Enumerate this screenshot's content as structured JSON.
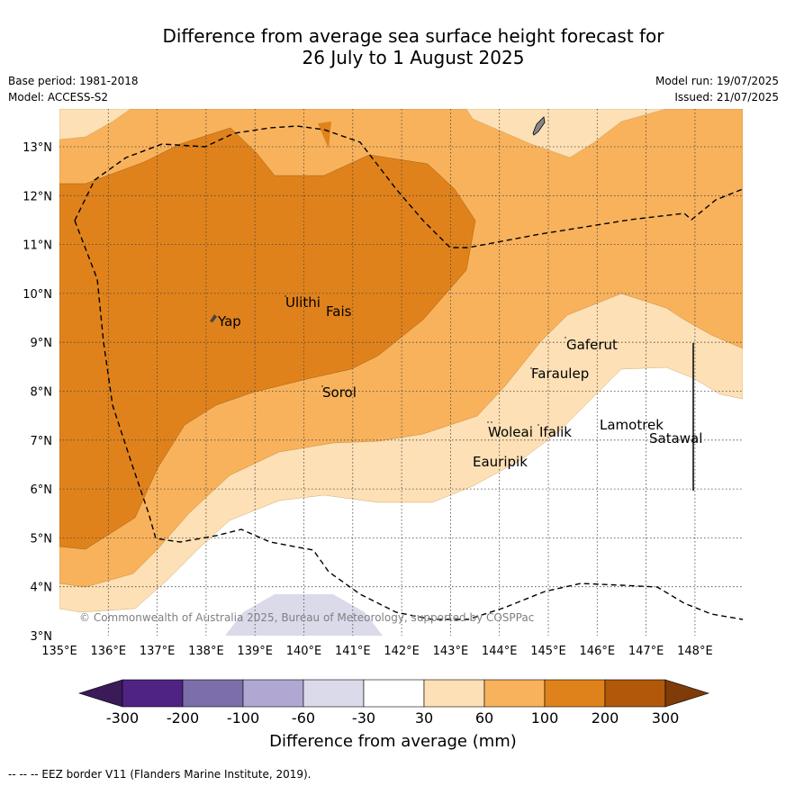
{
  "title": {
    "line1": "Difference from average sea surface height forecast for",
    "line2": "26 July to 1 August 2025"
  },
  "meta": {
    "base_period": "Base period: 1981-2018",
    "model": "Model: ACCESS-S2",
    "model_run": "Model run: 19/07/2025",
    "issued": "Issued: 21/07/2025"
  },
  "map": {
    "lon_ticks": [
      "135°E",
      "136°E",
      "137°E",
      "138°E",
      "139°E",
      "140°E",
      "141°E",
      "142°E",
      "143°E",
      "144°E",
      "145°E",
      "146°E",
      "147°E",
      "148°E"
    ],
    "lat_ticks": [
      "3°N",
      "4°N",
      "5°N",
      "6°N",
      "7°N",
      "8°N",
      "9°N",
      "10°N",
      "11°N",
      "12°N",
      "13°N"
    ],
    "places": [
      {
        "name": "Yap"
      },
      {
        "name": "Ulithi"
      },
      {
        "name": "Fais"
      },
      {
        "name": "Sorol"
      },
      {
        "name": "Gaferut"
      },
      {
        "name": "Faraulep"
      },
      {
        "name": "Woleai"
      },
      {
        "name": "Ifalik"
      },
      {
        "name": "Lamotrek"
      },
      {
        "name": "Satawal"
      },
      {
        "name": "Eauripik"
      }
    ],
    "copyright": "© Commonwealth of Australia 2025, Bureau of Meteorology, supported by COSPPac"
  },
  "colorbar": {
    "ticks": [
      "-300",
      "-200",
      "-100",
      "-60",
      "-30",
      "30",
      "60",
      "100",
      "200",
      "300"
    ],
    "colors": [
      "#3b1a5a",
      "#4f2383",
      "#7c6eab",
      "#b0a8d3",
      "#dadaeb",
      "#ffffff",
      "#fde0b5",
      "#f8b25c",
      "#e0821b",
      "#b1580b",
      "#7f3b08"
    ],
    "title": "Difference from average (mm)"
  },
  "eez_note": "--  --  -- EEZ border V11 (Flanders Marine Institute, 2019)."
}
